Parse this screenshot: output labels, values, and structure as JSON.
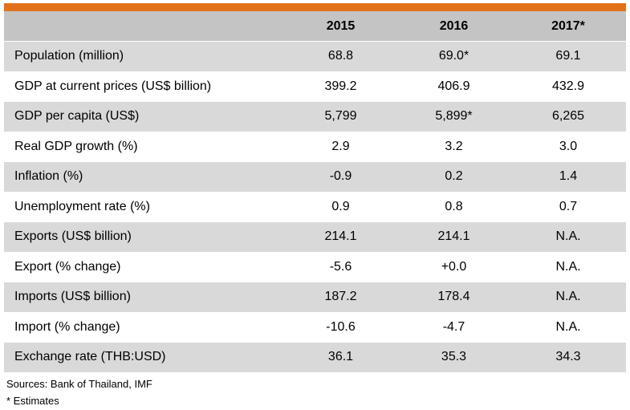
{
  "table": {
    "columns": [
      "",
      "2015",
      "2016",
      "2017*"
    ],
    "rows": [
      {
        "label": "Population (million)",
        "values": [
          "68.8",
          "69.0*",
          "69.1"
        ]
      },
      {
        "label": "GDP at current prices (US$ billion)",
        "values": [
          "399.2",
          "406.9",
          "432.9"
        ]
      },
      {
        "label": "GDP per capita (US$)",
        "values": [
          "5,799",
          "5,899*",
          "6,265"
        ]
      },
      {
        "label": "Real GDP growth (%)",
        "values": [
          "2.9",
          "3.2",
          "3.0"
        ]
      },
      {
        "label": "Inflation (%)",
        "values": [
          "-0.9",
          "0.2",
          "1.4"
        ]
      },
      {
        "label": "Unemployment rate (%)",
        "values": [
          "0.9",
          "0.8",
          "0.7"
        ]
      },
      {
        "label": "Exports (US$ billion)",
        "values": [
          "214.1",
          "214.1",
          "N.A."
        ]
      },
      {
        "label": "Export (% change)",
        "values": [
          "-5.6",
          "+0.0",
          "N.A."
        ]
      },
      {
        "label": "Imports (US$ billion)",
        "values": [
          "187.2",
          "178.4",
          "N.A."
        ]
      },
      {
        "label": "Import (% change)",
        "values": [
          "-10.6",
          "-4.7",
          "N.A."
        ]
      },
      {
        "label": "Exchange rate (THB:USD)",
        "values": [
          "36.1",
          "35.3",
          "34.3"
        ]
      }
    ]
  },
  "notes": {
    "sources": "Sources: Bank of Thailand, IMF",
    "estimates": "* Estimates"
  },
  "colors": {
    "accent_bar": "#e3711a",
    "header_bg": "#c4c4c4",
    "shaded_row_bg": "#d9d9d9",
    "plain_row_bg": "#ffffff"
  }
}
